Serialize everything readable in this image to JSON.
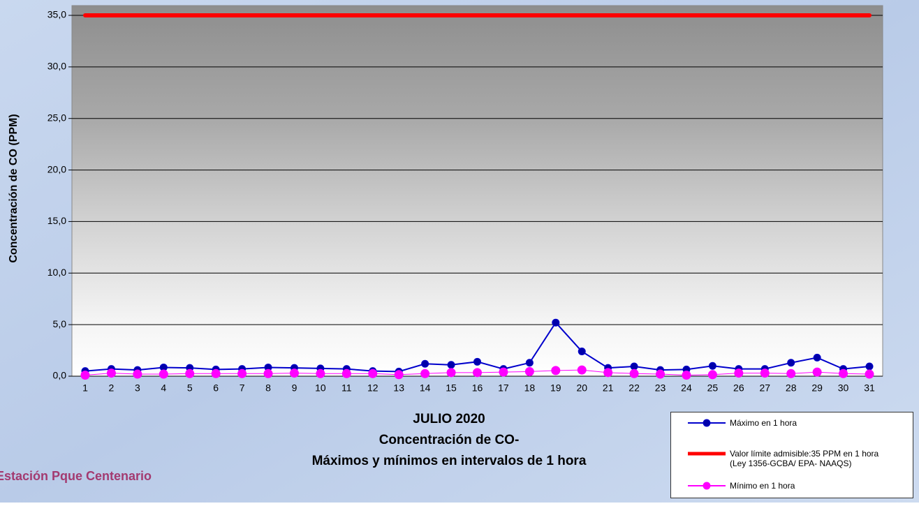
{
  "chart_data": {
    "type": "line",
    "title": "JULIO 2020",
    "subtitle": "Concentración de CO-",
    "subtitle2": "Máximos y mínimos en intervalos de 1 hora",
    "y_label": "Concentración de CO (PPM)",
    "station": "Estación Pque Centenario",
    "categories": [
      "1",
      "2",
      "3",
      "4",
      "5",
      "6",
      "7",
      "8",
      "9",
      "10",
      "11",
      "12",
      "13",
      "14",
      "15",
      "16",
      "17",
      "18",
      "19",
      "20",
      "21",
      "22",
      "23",
      "24",
      "25",
      "26",
      "27",
      "28",
      "29",
      "30",
      "31"
    ],
    "series": [
      {
        "name": "Máximo en 1 hora",
        "color": "#0000cc",
        "marker": true,
        "values": [
          0.5,
          0.7,
          0.6,
          0.85,
          0.8,
          0.65,
          0.7,
          0.85,
          0.8,
          0.75,
          0.7,
          0.5,
          0.45,
          1.2,
          1.1,
          1.4,
          0.7,
          1.3,
          5.2,
          2.4,
          0.8,
          0.95,
          0.6,
          0.65,
          1.0,
          0.7,
          0.7,
          1.3,
          1.8,
          0.7,
          0.95
        ]
      },
      {
        "name": "Valor límite admisible:35 PPM en 1 hora\n(Ley 1356-GCBA/ EPA- NAAQS)",
        "color": "#ff0000",
        "marker": false,
        "values": [
          35,
          35,
          35,
          35,
          35,
          35,
          35,
          35,
          35,
          35,
          35,
          35,
          35,
          35,
          35,
          35,
          35,
          35,
          35,
          35,
          35,
          35,
          35,
          35,
          35,
          35,
          35,
          35,
          35,
          35,
          35
        ]
      },
      {
        "name": "Mínimo en 1 hora",
        "color": "#ff00ff",
        "marker": true,
        "values": [
          0.1,
          0.3,
          0.2,
          0.2,
          0.25,
          0.25,
          0.25,
          0.25,
          0.3,
          0.25,
          0.25,
          0.25,
          0.15,
          0.25,
          0.35,
          0.35,
          0.4,
          0.45,
          0.55,
          0.6,
          0.35,
          0.25,
          0.2,
          0.1,
          0.15,
          0.3,
          0.3,
          0.25,
          0.4,
          0.25,
          0.2
        ]
      }
    ],
    "ylim": [
      0,
      35
    ],
    "yticks": [
      {
        "value": 0,
        "label": "0,0"
      },
      {
        "value": 5,
        "label": "5,0"
      },
      {
        "value": 10,
        "label": "10,0"
      },
      {
        "value": 15,
        "label": "15,0"
      },
      {
        "value": 20,
        "label": "20,0"
      },
      {
        "value": 25,
        "label": "25,0"
      },
      {
        "value": 30,
        "label": "30,0"
      },
      {
        "value": 35,
        "label": "35,0"
      }
    ],
    "grid": true,
    "legend": "bottom-right"
  }
}
